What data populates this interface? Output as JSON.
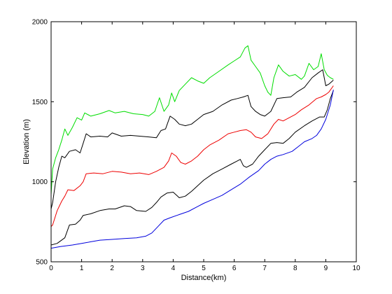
{
  "chart_data": {
    "type": "line",
    "title": "",
    "xlabel": "Distance(km)",
    "ylabel": "Elevation (m)",
    "xlim": [
      0,
      10
    ],
    "ylim": [
      500,
      2000
    ],
    "xticks": [
      0,
      1,
      2,
      3,
      4,
      5,
      6,
      7,
      8,
      9,
      10
    ],
    "yticks": [
      500,
      1000,
      1500,
      2000
    ],
    "grid": false,
    "legend": "none",
    "series": [
      {
        "color": "#00dd00",
        "points": [
          [
            0,
            920
          ],
          [
            0.05,
            1080
          ],
          [
            0.15,
            1150
          ],
          [
            0.25,
            1200
          ],
          [
            0.35,
            1260
          ],
          [
            0.45,
            1330
          ],
          [
            0.55,
            1290
          ],
          [
            0.7,
            1340
          ],
          [
            0.85,
            1400
          ],
          [
            1.0,
            1385
          ],
          [
            1.1,
            1430
          ],
          [
            1.3,
            1410
          ],
          [
            1.6,
            1425
          ],
          [
            1.9,
            1445
          ],
          [
            2.1,
            1430
          ],
          [
            2.4,
            1440
          ],
          [
            2.7,
            1425
          ],
          [
            3.0,
            1420
          ],
          [
            3.2,
            1410
          ],
          [
            3.4,
            1440
          ],
          [
            3.55,
            1525
          ],
          [
            3.7,
            1440
          ],
          [
            3.85,
            1480
          ],
          [
            3.95,
            1555
          ],
          [
            4.05,
            1500
          ],
          [
            4.2,
            1570
          ],
          [
            4.4,
            1610
          ],
          [
            4.6,
            1650
          ],
          [
            4.8,
            1630
          ],
          [
            5.0,
            1615
          ],
          [
            5.2,
            1650
          ],
          [
            5.5,
            1690
          ],
          [
            5.8,
            1730
          ],
          [
            6.0,
            1755
          ],
          [
            6.2,
            1780
          ],
          [
            6.35,
            1835
          ],
          [
            6.45,
            1850
          ],
          [
            6.55,
            1760
          ],
          [
            6.7,
            1720
          ],
          [
            6.85,
            1680
          ],
          [
            7.0,
            1600
          ],
          [
            7.1,
            1560
          ],
          [
            7.2,
            1540
          ],
          [
            7.3,
            1650
          ],
          [
            7.45,
            1730
          ],
          [
            7.6,
            1690
          ],
          [
            7.8,
            1660
          ],
          [
            8.0,
            1670
          ],
          [
            8.2,
            1640
          ],
          [
            8.3,
            1660
          ],
          [
            8.45,
            1740
          ],
          [
            8.6,
            1700
          ],
          [
            8.75,
            1720
          ],
          [
            8.85,
            1800
          ],
          [
            8.95,
            1700
          ],
          [
            9.05,
            1665
          ],
          [
            9.15,
            1650
          ],
          [
            9.25,
            1640
          ]
        ]
      },
      {
        "color": "#000000",
        "points": [
          [
            0,
            830
          ],
          [
            0.05,
            870
          ],
          [
            0.15,
            1000
          ],
          [
            0.25,
            1090
          ],
          [
            0.35,
            1160
          ],
          [
            0.45,
            1150
          ],
          [
            0.6,
            1190
          ],
          [
            0.8,
            1200
          ],
          [
            0.95,
            1180
          ],
          [
            1.05,
            1240
          ],
          [
            1.15,
            1300
          ],
          [
            1.3,
            1280
          ],
          [
            1.6,
            1285
          ],
          [
            1.85,
            1280
          ],
          [
            2.0,
            1305
          ],
          [
            2.3,
            1285
          ],
          [
            2.6,
            1290
          ],
          [
            2.9,
            1285
          ],
          [
            3.2,
            1280
          ],
          [
            3.45,
            1275
          ],
          [
            3.6,
            1320
          ],
          [
            3.75,
            1330
          ],
          [
            3.9,
            1410
          ],
          [
            4.05,
            1390
          ],
          [
            4.2,
            1360
          ],
          [
            4.4,
            1350
          ],
          [
            4.6,
            1360
          ],
          [
            4.8,
            1390
          ],
          [
            5.0,
            1420
          ],
          [
            5.3,
            1440
          ],
          [
            5.6,
            1480
          ],
          [
            5.9,
            1510
          ],
          [
            6.1,
            1520
          ],
          [
            6.3,
            1530
          ],
          [
            6.45,
            1540
          ],
          [
            6.55,
            1470
          ],
          [
            6.7,
            1440
          ],
          [
            6.85,
            1420
          ],
          [
            7.0,
            1410
          ],
          [
            7.2,
            1440
          ],
          [
            7.4,
            1520
          ],
          [
            7.6,
            1525
          ],
          [
            7.85,
            1530
          ],
          [
            8.05,
            1560
          ],
          [
            8.3,
            1590
          ],
          [
            8.55,
            1650
          ],
          [
            8.75,
            1680
          ],
          [
            8.9,
            1700
          ],
          [
            9.0,
            1600
          ],
          [
            9.1,
            1610
          ],
          [
            9.25,
            1635
          ]
        ]
      },
      {
        "color": "#ee0000",
        "points": [
          [
            0,
            720
          ],
          [
            0.05,
            730
          ],
          [
            0.2,
            820
          ],
          [
            0.35,
            880
          ],
          [
            0.45,
            910
          ],
          [
            0.55,
            950
          ],
          [
            0.75,
            945
          ],
          [
            0.95,
            975
          ],
          [
            1.05,
            1000
          ],
          [
            1.15,
            1050
          ],
          [
            1.4,
            1055
          ],
          [
            1.7,
            1050
          ],
          [
            2.0,
            1065
          ],
          [
            2.3,
            1060
          ],
          [
            2.6,
            1050
          ],
          [
            2.9,
            1055
          ],
          [
            3.2,
            1045
          ],
          [
            3.45,
            1065
          ],
          [
            3.7,
            1090
          ],
          [
            3.85,
            1130
          ],
          [
            3.95,
            1180
          ],
          [
            4.1,
            1160
          ],
          [
            4.25,
            1120
          ],
          [
            4.4,
            1110
          ],
          [
            4.6,
            1130
          ],
          [
            4.8,
            1160
          ],
          [
            5.0,
            1200
          ],
          [
            5.2,
            1230
          ],
          [
            5.5,
            1260
          ],
          [
            5.8,
            1300
          ],
          [
            6.0,
            1310
          ],
          [
            6.2,
            1320
          ],
          [
            6.4,
            1325
          ],
          [
            6.55,
            1310
          ],
          [
            6.7,
            1280
          ],
          [
            6.9,
            1270
          ],
          [
            7.1,
            1300
          ],
          [
            7.3,
            1360
          ],
          [
            7.45,
            1390
          ],
          [
            7.6,
            1380
          ],
          [
            7.8,
            1400
          ],
          [
            8.0,
            1420
          ],
          [
            8.2,
            1450
          ],
          [
            8.45,
            1480
          ],
          [
            8.7,
            1520
          ],
          [
            8.85,
            1530
          ],
          [
            9.0,
            1545
          ],
          [
            9.1,
            1560
          ],
          [
            9.25,
            1600
          ]
        ]
      },
      {
        "color": "#000000",
        "points": [
          [
            0,
            605
          ],
          [
            0.2,
            615
          ],
          [
            0.45,
            650
          ],
          [
            0.6,
            730
          ],
          [
            0.8,
            735
          ],
          [
            0.95,
            760
          ],
          [
            1.05,
            790
          ],
          [
            1.3,
            800
          ],
          [
            1.6,
            820
          ],
          [
            1.9,
            830
          ],
          [
            2.1,
            830
          ],
          [
            2.4,
            850
          ],
          [
            2.6,
            845
          ],
          [
            2.8,
            820
          ],
          [
            3.1,
            815
          ],
          [
            3.3,
            840
          ],
          [
            3.45,
            870
          ],
          [
            3.6,
            905
          ],
          [
            3.8,
            930
          ],
          [
            4.0,
            935
          ],
          [
            4.2,
            900
          ],
          [
            4.4,
            910
          ],
          [
            4.6,
            940
          ],
          [
            4.8,
            975
          ],
          [
            5.0,
            1010
          ],
          [
            5.3,
            1050
          ],
          [
            5.6,
            1080
          ],
          [
            5.9,
            1110
          ],
          [
            6.1,
            1130
          ],
          [
            6.2,
            1140
          ],
          [
            6.3,
            1100
          ],
          [
            6.4,
            1090
          ],
          [
            6.6,
            1110
          ],
          [
            6.8,
            1160
          ],
          [
            7.0,
            1200
          ],
          [
            7.2,
            1240
          ],
          [
            7.4,
            1245
          ],
          [
            7.6,
            1240
          ],
          [
            7.8,
            1270
          ],
          [
            8.0,
            1310
          ],
          [
            8.3,
            1350
          ],
          [
            8.55,
            1380
          ],
          [
            8.8,
            1405
          ],
          [
            8.95,
            1405
          ],
          [
            9.05,
            1450
          ],
          [
            9.15,
            1520
          ],
          [
            9.25,
            1570
          ]
        ]
      },
      {
        "color": "#0000dd",
        "points": [
          [
            0,
            585
          ],
          [
            0.3,
            595
          ],
          [
            0.7,
            605
          ],
          [
            1.0,
            615
          ],
          [
            1.3,
            625
          ],
          [
            1.6,
            635
          ],
          [
            2.0,
            640
          ],
          [
            2.4,
            645
          ],
          [
            2.8,
            650
          ],
          [
            3.1,
            660
          ],
          [
            3.3,
            680
          ],
          [
            3.5,
            720
          ],
          [
            3.7,
            760
          ],
          [
            3.9,
            775
          ],
          [
            4.2,
            795
          ],
          [
            4.5,
            815
          ],
          [
            4.8,
            845
          ],
          [
            5.0,
            865
          ],
          [
            5.3,
            890
          ],
          [
            5.6,
            915
          ],
          [
            5.9,
            950
          ],
          [
            6.2,
            985
          ],
          [
            6.5,
            1030
          ],
          [
            6.8,
            1070
          ],
          [
            7.0,
            1110
          ],
          [
            7.2,
            1140
          ],
          [
            7.4,
            1160
          ],
          [
            7.6,
            1170
          ],
          [
            7.9,
            1190
          ],
          [
            8.1,
            1220
          ],
          [
            8.3,
            1250
          ],
          [
            8.55,
            1270
          ],
          [
            8.7,
            1290
          ],
          [
            8.85,
            1330
          ],
          [
            9.0,
            1390
          ],
          [
            9.15,
            1480
          ],
          [
            9.25,
            1575
          ]
        ]
      }
    ]
  }
}
